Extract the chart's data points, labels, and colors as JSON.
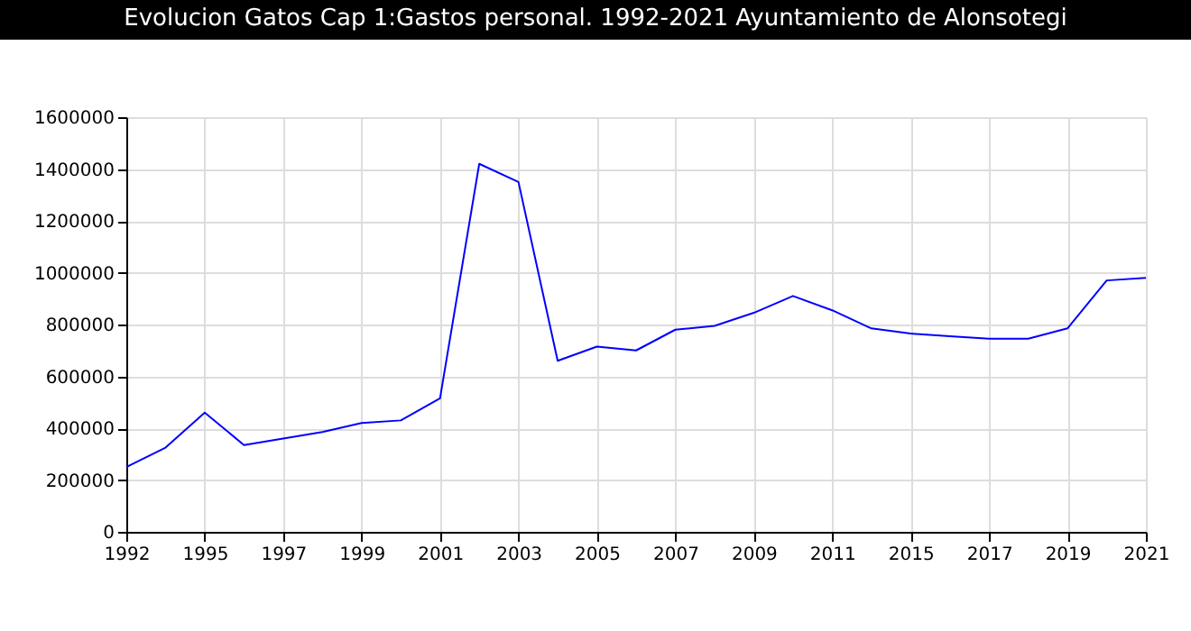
{
  "chart_data": {
    "type": "line",
    "title": "Evolucion Gatos Cap 1:Gastos personal. 1992-2021 Ayuntamiento de Alonsotegi",
    "categories": [
      "1992",
      null,
      "1995",
      null,
      "1997",
      null,
      "1999",
      null,
      "2001",
      null,
      "2003",
      null,
      "2005",
      null,
      "2007",
      null,
      "2009",
      null,
      "2011",
      null,
      "2015",
      null,
      "2017",
      null,
      "2019",
      null,
      "2021"
    ],
    "series": [
      {
        "color": "#0000ff",
        "values": [
          250000,
          325000,
          460000,
          335000,
          360000,
          385000,
          420000,
          430000,
          515000,
          1420000,
          1350000,
          660000,
          715000,
          700000,
          780000,
          795000,
          845000,
          910000,
          855000,
          785000,
          765000,
          755000,
          745000,
          745000,
          785000,
          970000,
          980000
        ]
      }
    ],
    "ylim": [
      0,
      1600000
    ],
    "yticks": [
      0,
      200000,
      400000,
      600000,
      800000,
      1000000,
      1200000,
      1400000,
      1600000
    ],
    "grid": true
  }
}
